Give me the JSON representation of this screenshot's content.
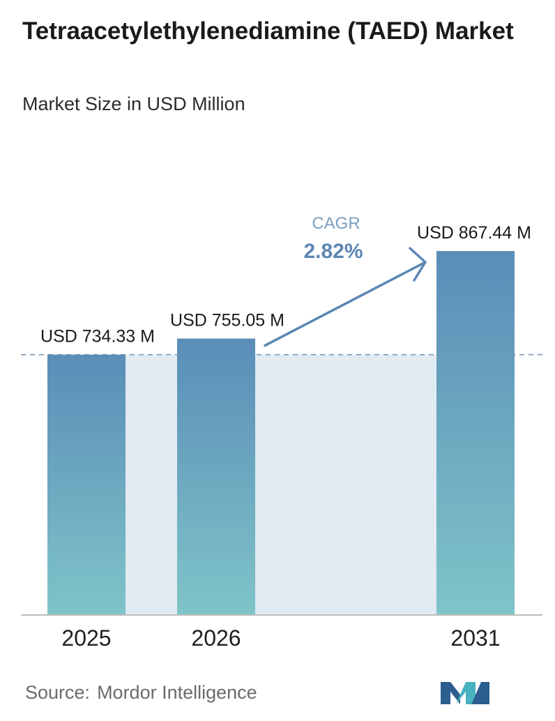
{
  "title": "Tetraacetylethylenediamine (TAED) Market",
  "subtitle": "Market Size in USD Million",
  "chart_data": {
    "type": "bar",
    "categories": [
      "2025",
      "2026",
      "2031"
    ],
    "values": [
      734.33,
      755.05,
      867.44
    ],
    "value_labels": [
      "USD 734.33 M",
      "USD 755.05 M",
      "USD 867.44 M"
    ],
    "title": "Tetraacetylethylenediamine (TAED) Market",
    "subtitle": "Market Size in USD Million",
    "xlabel": "",
    "ylabel": "",
    "ylim": [
      0,
      1000
    ],
    "grid": false,
    "legend": "none",
    "annotation": {
      "label": "CAGR",
      "value": "2.82%"
    },
    "colors": {
      "bar_top": "#5a8db8",
      "bar_bottom": "#7fc4c8",
      "band": "#e2eaf2",
      "arrow": "#5b87b4",
      "reference_line": "#6a8fb0",
      "axis": "#bdbdbd"
    }
  },
  "source": {
    "label": "Source:",
    "name": "Mordor Intelligence"
  },
  "logo": {
    "icon": "mordor-intelligence-logo-icon",
    "colors": [
      "#2c5f8f",
      "#49b2c1"
    ]
  }
}
